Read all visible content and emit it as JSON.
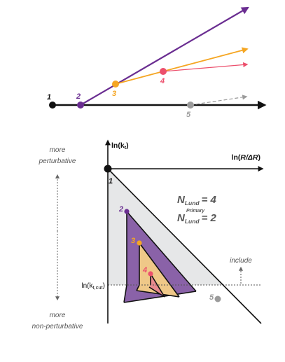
{
  "top": {
    "nodes": [
      {
        "label": "1",
        "color": "#111111"
      },
      {
        "label": "2",
        "color": "#6a2d91"
      },
      {
        "label": "3",
        "color": "#f5a623"
      },
      {
        "label": "4",
        "color": "#ec4f6c"
      },
      {
        "label": "5",
        "color": "#9b9b9b"
      }
    ]
  },
  "bottom": {
    "side_top_1": "more",
    "side_top_2": "perturbative",
    "side_bottom_1": "more",
    "side_bottom_2": "non-perturbative",
    "y_axis_label": "ln(k",
    "y_axis_sub": "t",
    "y_axis_close": ")",
    "x_axis_label_a": "ln(",
    "x_axis_label_b": "R/ΔR",
    "x_axis_label_c": ")",
    "n_lund_symbol": "N",
    "n_lund_sub": "Lund",
    "n_lund_value": "= 4",
    "n_primary_symbol": "N",
    "n_primary_sup": "Primary",
    "n_primary_sub": "Lund",
    "n_primary_value": "= 2",
    "include_label": "include",
    "cut_label": "ln(k",
    "cut_sub": "t,cut",
    "cut_close": ")",
    "origin_label": "1",
    "emissions": [
      {
        "label": "2",
        "color": "#6a2d91"
      },
      {
        "label": "3",
        "color": "#f5a623"
      },
      {
        "label": "4",
        "color": "#ec4f6c"
      },
      {
        "label": "5",
        "color": "#9b9b9b"
      }
    ]
  },
  "colors": {
    "purple": "#6a2d91",
    "purple_fill": "#8a62a8",
    "orange": "#f5a623",
    "orange_fill": "#efc888",
    "pink": "#ec4f6c",
    "pink_fill": "#e88a8e",
    "gray": "#9b9b9b",
    "triangle_fill": "#e6e7e8",
    "axis": "#111111"
  }
}
